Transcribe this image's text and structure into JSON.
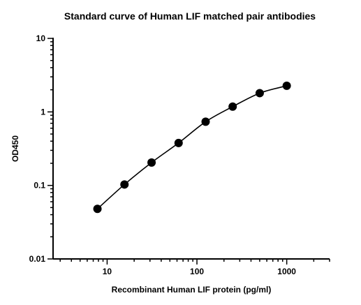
{
  "chart_data": {
    "type": "scatter",
    "title": "Standard curve of Human LIF matched pair antibodies",
    "xlabel": "Recombinant Human LIF protein (pg/ml)",
    "ylabel": "OD450",
    "x_scale": "log",
    "y_scale": "log",
    "xlim": [
      2.5,
      3000
    ],
    "ylim": [
      0.01,
      10
    ],
    "x_ticks": [
      {
        "value": 10,
        "label": "10"
      },
      {
        "value": 100,
        "label": "100"
      },
      {
        "value": 1000,
        "label": "1000"
      }
    ],
    "y_ticks": [
      {
        "value": 0.01,
        "label": "0.01"
      },
      {
        "value": 0.1,
        "label": "0.1"
      },
      {
        "value": 1,
        "label": "1"
      },
      {
        "value": 10,
        "label": "10"
      }
    ],
    "grid": false,
    "series": [
      {
        "x": [
          7.8,
          15.6,
          31.25,
          62.5,
          125,
          250,
          500,
          1000
        ],
        "y": [
          0.048,
          0.103,
          0.205,
          0.378,
          0.735,
          1.18,
          1.8,
          2.27
        ],
        "color": "#000000",
        "marker": "circle",
        "fit_line": true
      }
    ]
  }
}
